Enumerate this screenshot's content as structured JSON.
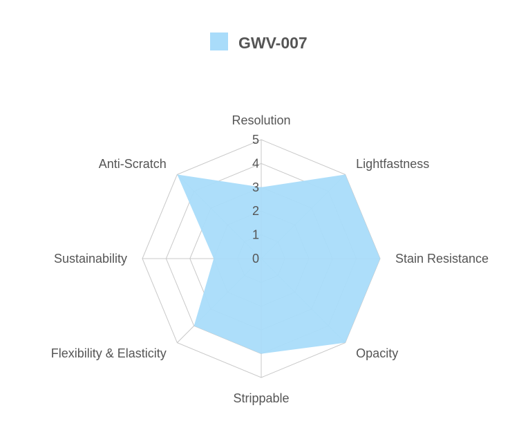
{
  "chart_data": {
    "type": "radar",
    "axes": [
      "Resolution",
      "Lightfastness",
      "Stain Resistance",
      "Opacity",
      "Strippable",
      "Flexibility & Elasticity",
      "Sustainability",
      "Anti-Scratch"
    ],
    "rlim": [
      0,
      5
    ],
    "ticks": [
      "0",
      "1",
      "2",
      "3",
      "4",
      "5"
    ],
    "series": [
      {
        "name": "GWV-007",
        "values": [
          3,
          5,
          5,
          5,
          4,
          4,
          2,
          5
        ],
        "color": "#a9dcfa"
      }
    ],
    "legend_position": "top-center",
    "grid": true
  }
}
